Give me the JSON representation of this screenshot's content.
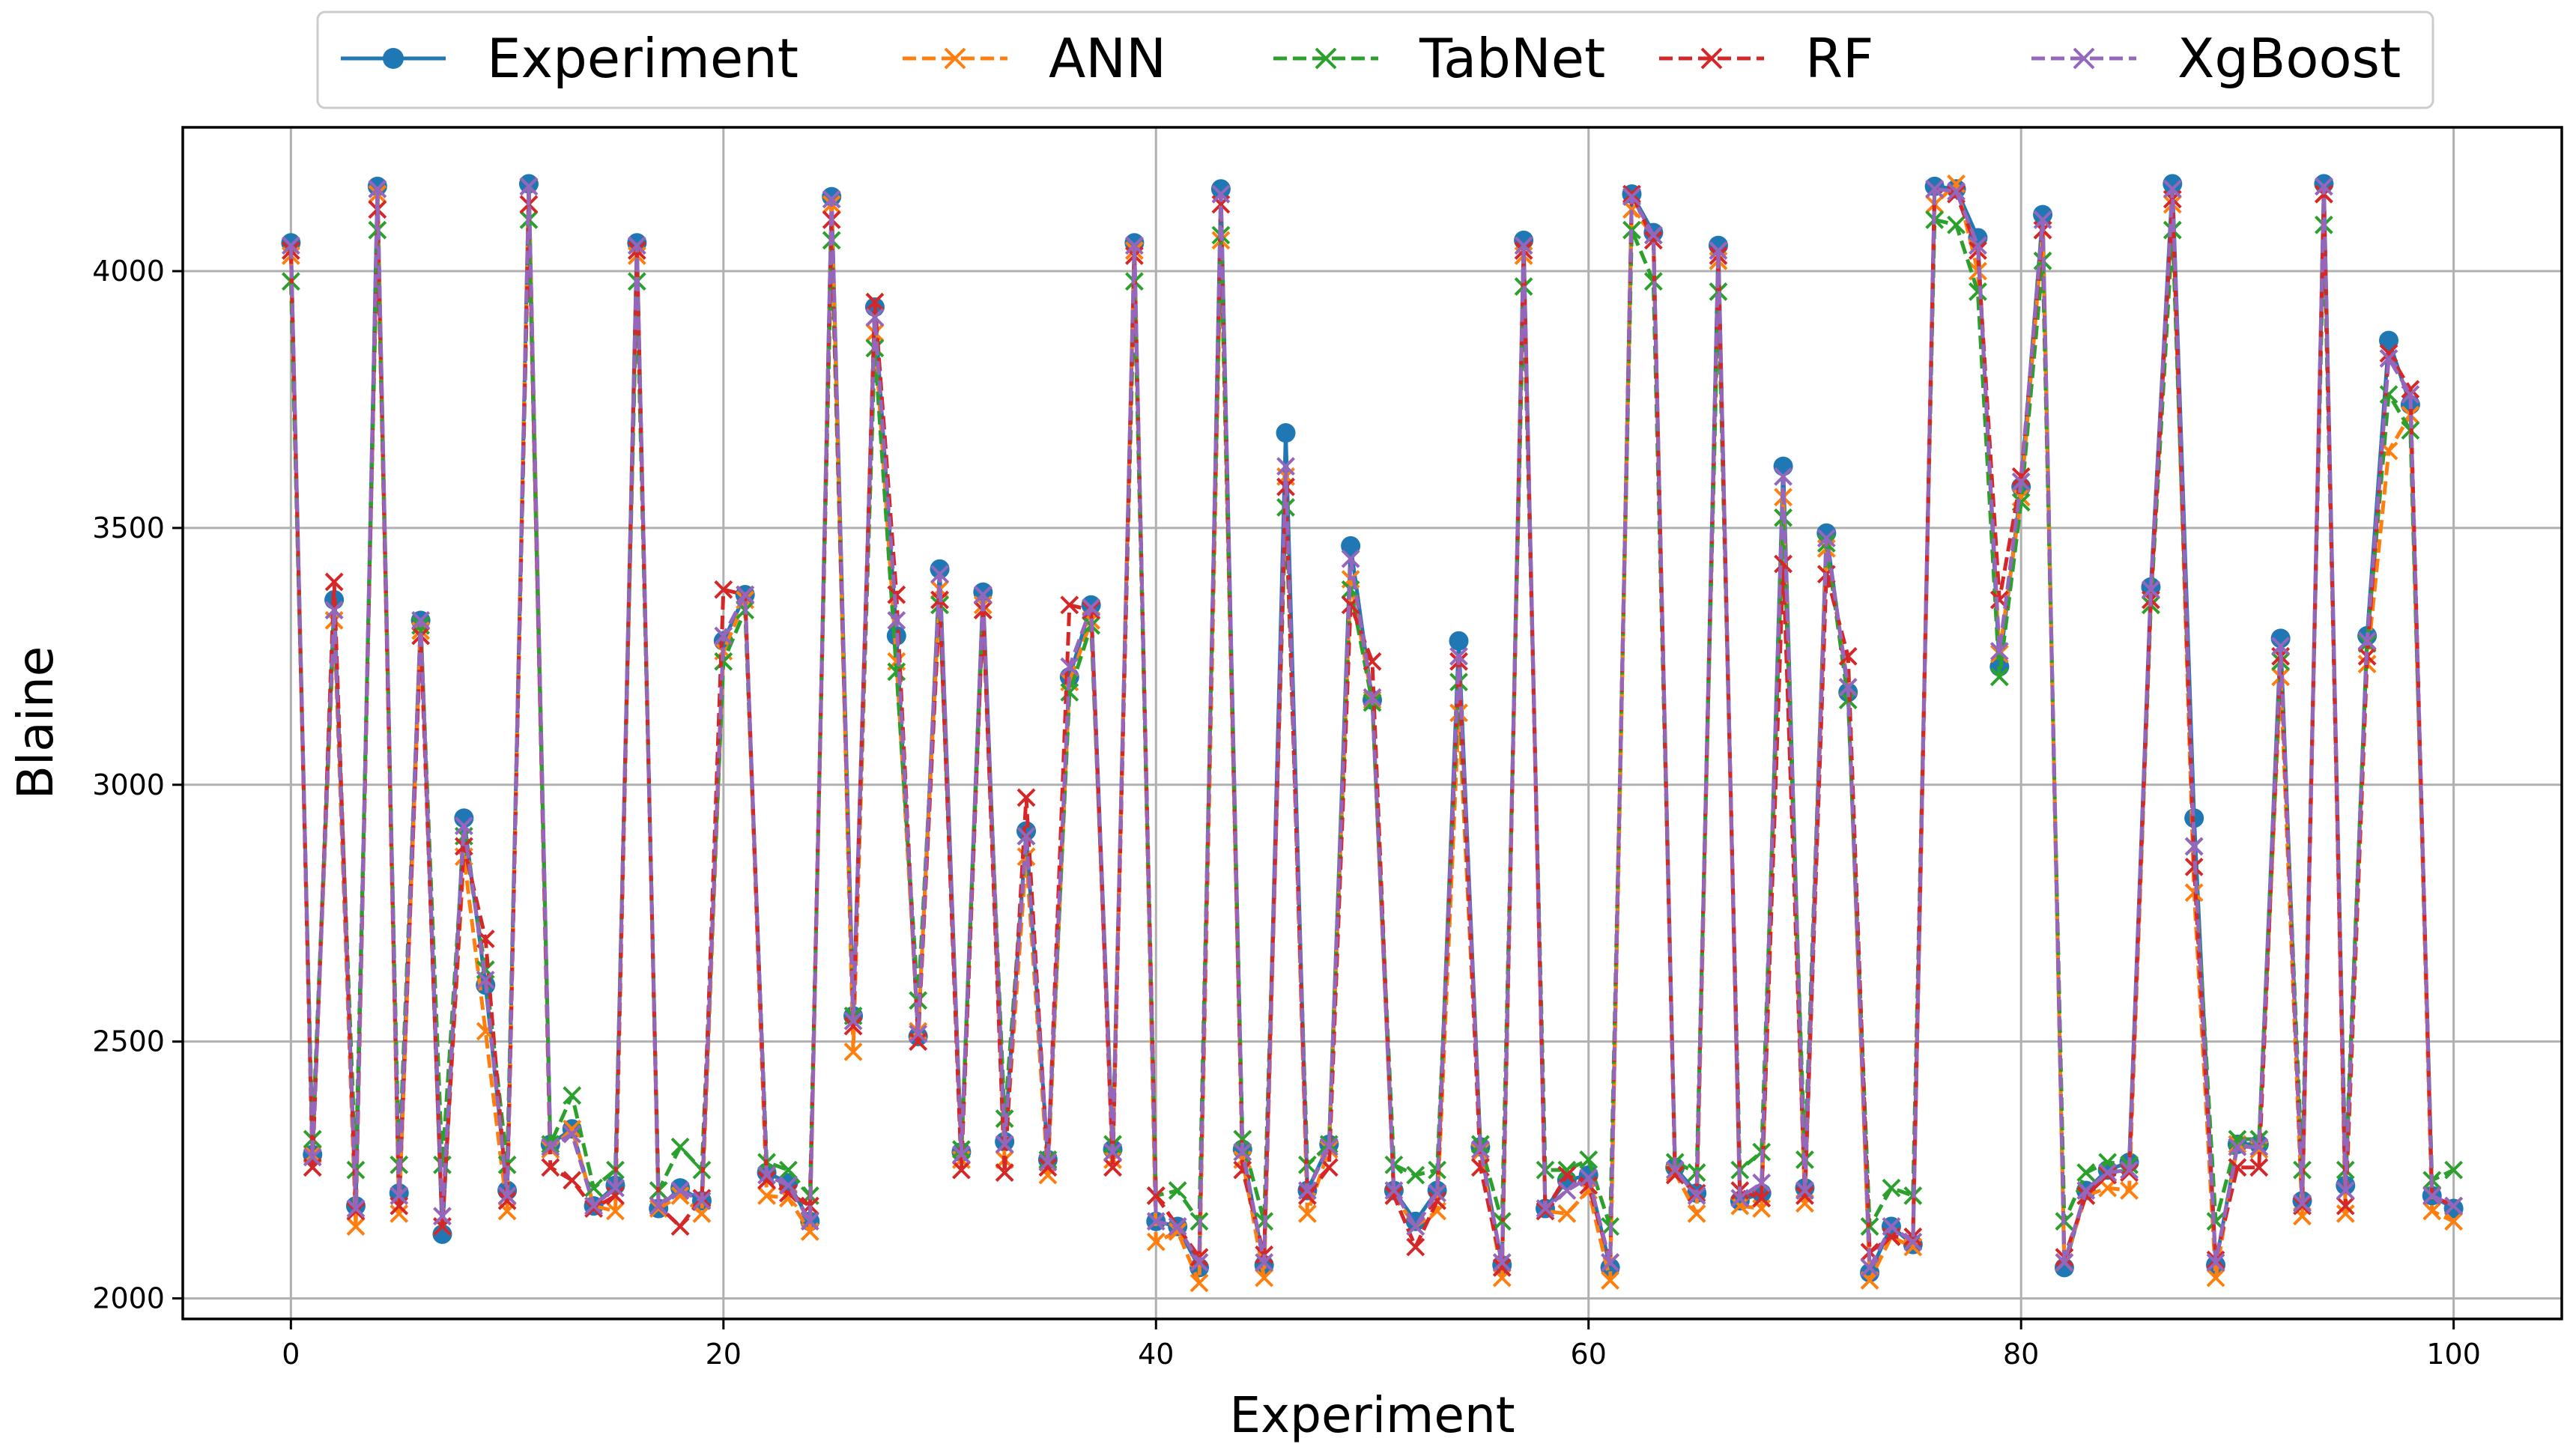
{
  "chart_data": {
    "type": "line",
    "title": "",
    "xlabel": "Experiment",
    "ylabel": "Blaine",
    "xlim": [
      -5,
      105
    ],
    "ylim": [
      1960,
      4280
    ],
    "grid": true,
    "legend_position": "top-center",
    "xticks": [
      0,
      20,
      40,
      60,
      80,
      100
    ],
    "yticks": [
      2000,
      2500,
      3000,
      3500,
      4000
    ],
    "xtick_labels": [
      "0",
      "20",
      "40",
      "60",
      "80",
      "100"
    ],
    "ytick_labels": [
      "2000",
      "2500",
      "3000",
      "3500",
      "4000"
    ],
    "series": [
      {
        "name": "Experiment",
        "color": "#1f77b4",
        "marker": "circle",
        "linestyle": "solid",
        "values": [
          4055,
          2280,
          3360,
          2180,
          4165,
          2205,
          3320,
          2125,
          2935,
          2610,
          2210,
          4170,
          2300,
          2330,
          2180,
          2220,
          4055,
          2175,
          2215,
          2190,
          3280,
          3370,
          2245,
          2225,
          2150,
          4145,
          2550,
          3930,
          3290,
          2510,
          3420,
          2285,
          3375,
          2305,
          2910,
          2270,
          3210,
          3350,
          2290,
          4055,
          2150,
          2140,
          2060,
          4160,
          2290,
          2065,
          3685,
          2210,
          2300,
          3465,
          3165,
          2210,
          2150,
          2210,
          3280,
          2295,
          2065,
          4060,
          2175,
          2230,
          2240,
          2060,
          4150,
          4075,
          2255,
          2205,
          4050,
          2190,
          2205,
          3620,
          2215,
          3490,
          3180,
          2050,
          2140,
          2105,
          4165,
          4160,
          4065,
          3230,
          3580,
          4110,
          2060,
          2210,
          2250,
          2265,
          3385,
          4170,
          2935,
          2065,
          2300,
          2300,
          3285,
          2190,
          4170,
          2220,
          3290,
          3865,
          3740,
          2200,
          2175
        ]
      },
      {
        "name": "ANN",
        "color": "#ff7f0e",
        "marker": "x",
        "linestyle": "dashed",
        "values": [
          4030,
          2280,
          3320,
          2140,
          4150,
          2165,
          3300,
          2140,
          2860,
          2520,
          2170,
          4165,
          2290,
          2330,
          2180,
          2170,
          4030,
          2175,
          2200,
          2165,
          3260,
          3360,
          2200,
          2195,
          2130,
          4130,
          2480,
          3880,
          3240,
          2520,
          3380,
          2270,
          3350,
          2270,
          2860,
          2240,
          3200,
          3320,
          2270,
          4040,
          2110,
          2130,
          2030,
          4060,
          2270,
          2040,
          3600,
          2165,
          2290,
          3400,
          3165,
          2200,
          2140,
          2170,
          3140,
          2285,
          2040,
          4030,
          2170,
          2165,
          2210,
          2035,
          4120,
          4070,
          2245,
          2165,
          4020,
          2180,
          2175,
          3560,
          2185,
          3460,
          3190,
          2035,
          2120,
          2100,
          4130,
          4170,
          4000,
          3255,
          3560,
          4080,
          2070,
          2200,
          2215,
          2210,
          3350,
          4130,
          2790,
          2040,
          2300,
          2290,
          3210,
          2160,
          4150,
          2165,
          3235,
          3650,
          3720,
          2170,
          2150
        ]
      },
      {
        "name": "TabNet",
        "color": "#2ca02c",
        "marker": "x",
        "linestyle": "dashed",
        "values": [
          3980,
          2310,
          3340,
          2250,
          4080,
          2260,
          3310,
          2260,
          2900,
          2640,
          2260,
          4100,
          2300,
          2395,
          2215,
          2250,
          3980,
          2210,
          2295,
          2250,
          3240,
          3340,
          2265,
          2250,
          2200,
          4060,
          2550,
          3850,
          3220,
          2580,
          3350,
          2290,
          3340,
          2350,
          2900,
          2270,
          3180,
          3310,
          2300,
          3980,
          2200,
          2210,
          2150,
          4070,
          2310,
          2150,
          3540,
          2260,
          2300,
          3380,
          3160,
          2260,
          2240,
          2250,
          3200,
          2300,
          2150,
          3970,
          2250,
          2250,
          2270,
          2140,
          4080,
          3980,
          2265,
          2245,
          3960,
          2250,
          2285,
          3520,
          2270,
          3470,
          3165,
          2140,
          2215,
          2200,
          4100,
          4090,
          3960,
          3210,
          3550,
          4020,
          2150,
          2245,
          2265,
          2260,
          3350,
          4080,
          2880,
          2150,
          2310,
          2310,
          3240,
          2250,
          4090,
          2250,
          3275,
          3760,
          3690,
          2230,
          2250
        ]
      },
      {
        "name": "RF",
        "color": "#d62728",
        "marker": "x",
        "linestyle": "dashed",
        "values": [
          4040,
          2255,
          3395,
          2170,
          4120,
          2180,
          3290,
          2140,
          2880,
          2700,
          2190,
          4130,
          2255,
          2230,
          2175,
          2200,
          4040,
          2180,
          2140,
          2195,
          3380,
          3370,
          2230,
          2205,
          2180,
          4100,
          2530,
          3940,
          3370,
          2500,
          3360,
          2250,
          3340,
          2245,
          2975,
          2255,
          3350,
          3340,
          2255,
          4030,
          2200,
          2140,
          2080,
          4130,
          2250,
          2085,
          3580,
          2200,
          2255,
          3350,
          3240,
          2200,
          2100,
          2190,
          3240,
          2255,
          2060,
          4040,
          2170,
          2240,
          2220,
          2070,
          4150,
          4060,
          2240,
          2205,
          4030,
          2210,
          2195,
          3430,
          2200,
          3410,
          3250,
          2090,
          2120,
          2120,
          4160,
          4150,
          4040,
          3360,
          3600,
          4080,
          2080,
          2200,
          2240,
          2245,
          3360,
          4140,
          2840,
          2075,
          2255,
          2255,
          3250,
          2180,
          4150,
          2180,
          3250,
          3840,
          3770,
          2200,
          2180
        ]
      },
      {
        "name": "XgBoost",
        "color": "#9467bd",
        "marker": "x",
        "linestyle": "dashed",
        "values": [
          4050,
          2275,
          3340,
          2175,
          4160,
          2200,
          3320,
          2160,
          2920,
          2620,
          2200,
          4165,
          2295,
          2320,
          2180,
          2215,
          4050,
          2180,
          2210,
          2190,
          3290,
          3370,
          2240,
          2220,
          2150,
          4140,
          2540,
          3910,
          3320,
          2515,
          3410,
          2280,
          3370,
          2300,
          2900,
          2265,
          3230,
          3345,
          2285,
          4050,
          2150,
          2140,
          2070,
          4150,
          2285,
          2070,
          3620,
          2210,
          2295,
          3440,
          3170,
          2210,
          2140,
          2205,
          3250,
          2290,
          2070,
          4050,
          2175,
          2210,
          2235,
          2070,
          4145,
          4070,
          2250,
          2200,
          4040,
          2195,
          2225,
          3600,
          2210,
          3480,
          3190,
          2060,
          2140,
          2110,
          4160,
          4155,
          4050,
          3260,
          3590,
          4100,
          2070,
          2210,
          2245,
          2250,
          3380,
          4160,
          2880,
          2070,
          2295,
          2295,
          3270,
          2185,
          4165,
          2210,
          3280,
          3830,
          3760,
          2200,
          2180
        ]
      }
    ]
  }
}
